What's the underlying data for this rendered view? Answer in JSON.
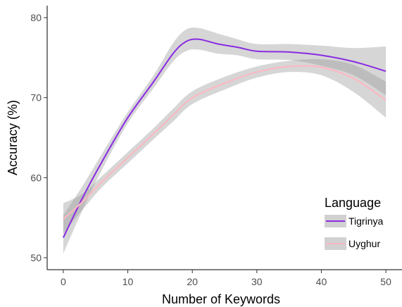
{
  "chart_data": {
    "type": "line",
    "title": "",
    "xlabel": "Number of Keywords",
    "ylabel": "Accuracy (%)",
    "xlim": [
      -2.5,
      52.5
    ],
    "ylim": [
      48.5,
      81.5
    ],
    "x_ticks": [
      0,
      10,
      20,
      30,
      40,
      50
    ],
    "y_ticks": [
      50,
      60,
      70,
      80
    ],
    "grid": false,
    "legend": {
      "title": "Language",
      "position": "right-inside"
    },
    "series": [
      {
        "name": "Tigrinya",
        "color": "#8a2be2",
        "x": [
          0,
          3,
          6,
          10,
          14,
          17,
          19,
          21,
          24,
          27,
          30,
          35,
          40,
          45,
          50
        ],
        "y": [
          52.5,
          57.5,
          62.0,
          67.5,
          72.0,
          75.5,
          77.0,
          77.3,
          76.7,
          76.3,
          75.8,
          75.7,
          75.3,
          74.5,
          73.3
        ],
        "ci_lower": [
          50.5,
          56.0,
          61.0,
          66.8,
          71.2,
          74.5,
          75.8,
          76.0,
          75.5,
          75.3,
          74.8,
          74.7,
          74.0,
          72.8,
          70.3
        ],
        "ci_upper": [
          55.3,
          59.0,
          63.0,
          68.2,
          72.8,
          76.8,
          78.5,
          78.7,
          78.0,
          77.3,
          76.7,
          76.7,
          76.5,
          76.2,
          76.4
        ]
      },
      {
        "name": "Uyghur",
        "color": "#ffb6c1",
        "x": [
          0,
          3,
          6,
          10,
          14,
          17,
          20,
          25,
          30,
          35,
          40,
          45,
          50
        ],
        "y": [
          54.8,
          57.0,
          59.5,
          62.5,
          65.5,
          67.8,
          70.0,
          71.8,
          73.2,
          73.9,
          73.8,
          72.4,
          69.7
        ],
        "ci_lower": [
          53.0,
          56.0,
          58.8,
          61.8,
          64.8,
          67.0,
          69.2,
          71.0,
          72.5,
          73.2,
          72.8,
          70.7,
          67.5
        ],
        "ci_upper": [
          56.8,
          58.0,
          60.2,
          63.2,
          66.2,
          68.6,
          70.8,
          72.6,
          73.9,
          74.6,
          74.8,
          74.1,
          72.0
        ]
      }
    ]
  }
}
